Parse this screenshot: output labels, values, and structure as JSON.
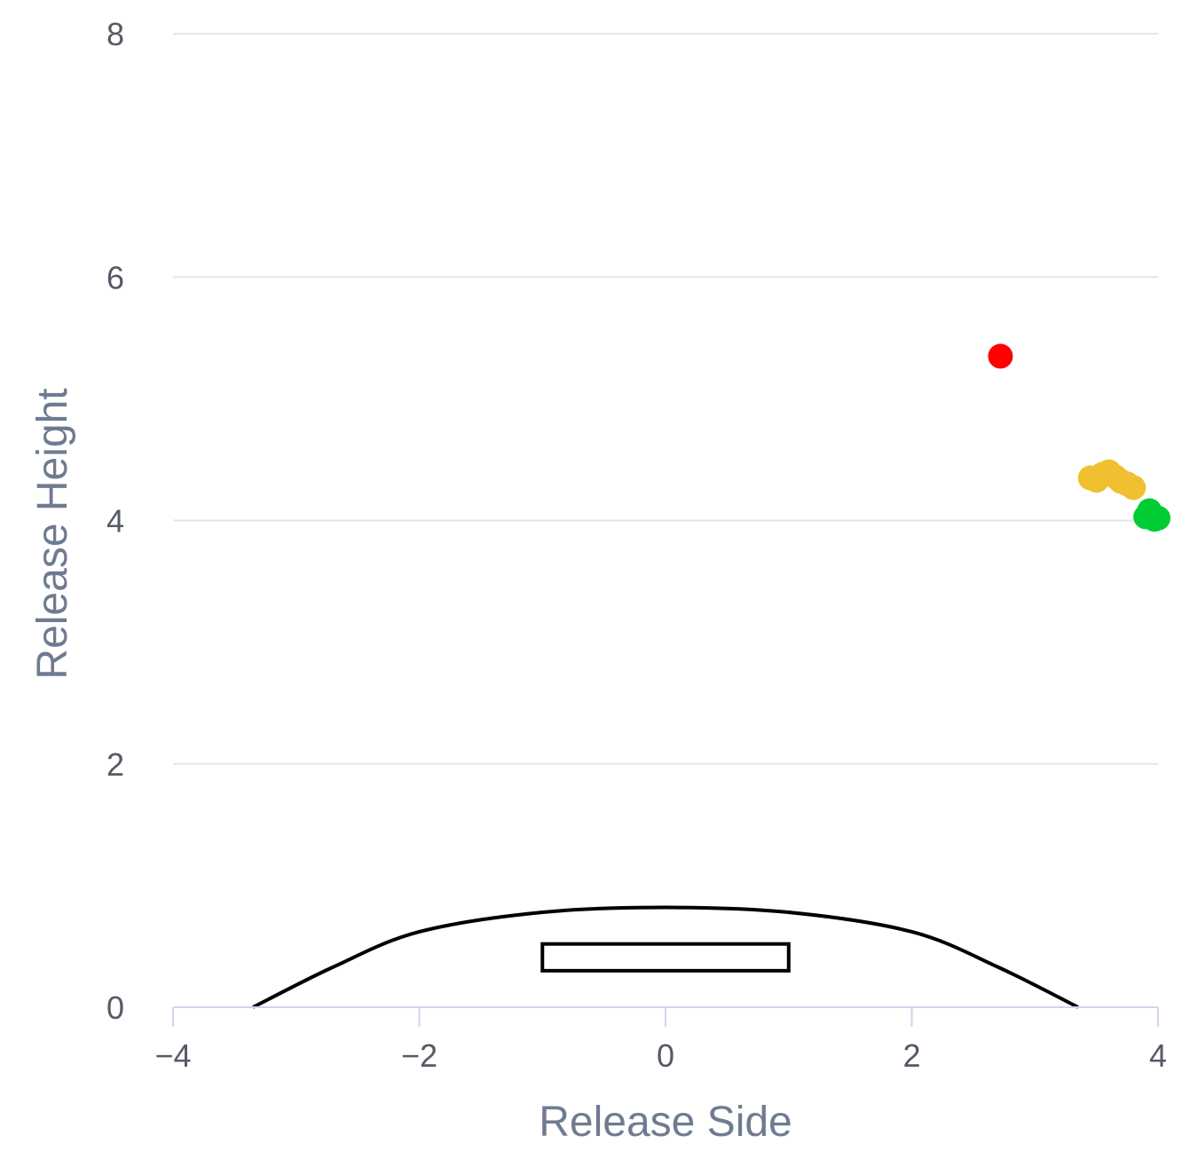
{
  "chart_data": {
    "type": "scatter",
    "title": "",
    "xlabel": "Release Side",
    "ylabel": "Release Height",
    "xlim": [
      -4,
      4
    ],
    "ylim": [
      0,
      8
    ],
    "x_ticks": [
      -4,
      -2,
      0,
      2,
      4
    ],
    "y_ticks": [
      0,
      2,
      4,
      6,
      8
    ],
    "x_tick_labels": [
      "−4",
      "−2",
      "0",
      "2",
      "4"
    ],
    "y_tick_labels": [
      "0",
      "2",
      "4",
      "6",
      "8"
    ],
    "grid": "horizontal",
    "series": [
      {
        "color": "#ff0000",
        "points": [
          {
            "x": 2.72,
            "y": 5.35
          }
        ]
      },
      {
        "color": "#f0c030",
        "points": [
          {
            "x": 3.45,
            "y": 4.35
          },
          {
            "x": 3.5,
            "y": 4.33
          },
          {
            "x": 3.55,
            "y": 4.38
          },
          {
            "x": 3.6,
            "y": 4.4
          },
          {
            "x": 3.65,
            "y": 4.36
          },
          {
            "x": 3.7,
            "y": 4.32
          },
          {
            "x": 3.75,
            "y": 4.3
          },
          {
            "x": 3.8,
            "y": 4.27
          }
        ]
      },
      {
        "color": "#00cc33",
        "points": [
          {
            "x": 3.9,
            "y": 4.03
          },
          {
            "x": 3.93,
            "y": 4.08
          },
          {
            "x": 3.97,
            "y": 4.01
          },
          {
            "x": 4.0,
            "y": 4.02
          }
        ]
      }
    ],
    "mound": {
      "profile": [
        {
          "x": -3.35,
          "y": 0.0
        },
        {
          "x": -2.7,
          "y": 0.33
        },
        {
          "x": -2.0,
          "y": 0.62
        },
        {
          "x": -1.0,
          "y": 0.78
        },
        {
          "x": 0.0,
          "y": 0.82
        },
        {
          "x": 1.0,
          "y": 0.78
        },
        {
          "x": 2.0,
          "y": 0.62
        },
        {
          "x": 2.7,
          "y": 0.33
        },
        {
          "x": 3.35,
          "y": 0.0
        }
      ],
      "rubber": {
        "x_min": -1.0,
        "x_max": 1.0,
        "y_min": 0.3,
        "y_max": 0.52
      }
    }
  }
}
